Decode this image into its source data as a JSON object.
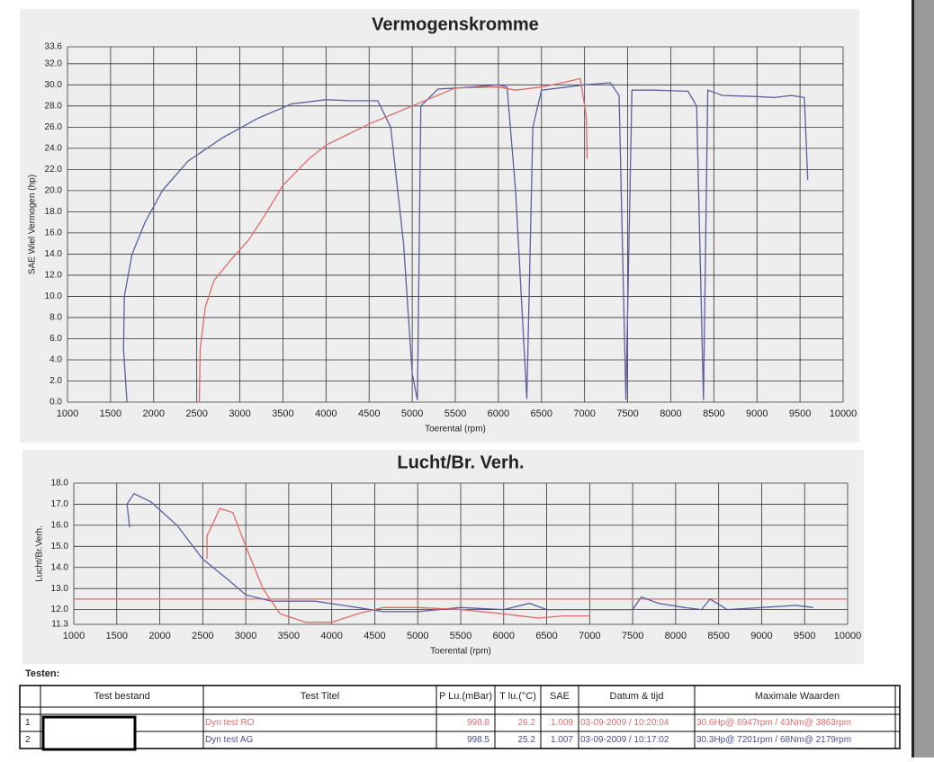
{
  "chart_data": [
    {
      "type": "line",
      "title": "Vermogenskromme",
      "x_label": "Toerental (rpm)",
      "y_label": "SAE Wiel Vermogen (hp)",
      "xlim": [
        1000,
        10000
      ],
      "xticks": [
        1000,
        1500,
        2000,
        2500,
        3000,
        3500,
        4000,
        4500,
        5000,
        5500,
        6000,
        6500,
        7000,
        7500,
        8000,
        8500,
        9000,
        9500,
        10000
      ],
      "ylim": [
        0,
        33.6
      ],
      "yticks": [
        {
          "value": 0,
          "label": "0.0"
        },
        {
          "value": 2,
          "label": "2.0"
        },
        {
          "value": 4,
          "label": "4.0"
        },
        {
          "value": 6,
          "label": "6.0"
        },
        {
          "value": 8,
          "label": "8.0"
        },
        {
          "value": 10,
          "label": "10.0"
        },
        {
          "value": 12,
          "label": "12.0"
        },
        {
          "value": 14,
          "label": "14.0"
        },
        {
          "value": 16,
          "label": "16.0"
        },
        {
          "value": 18,
          "label": "18.0"
        },
        {
          "value": 20,
          "label": "20.0"
        },
        {
          "value": 22,
          "label": "22.0"
        },
        {
          "value": 24,
          "label": "24.0"
        },
        {
          "value": 26,
          "label": "26.0"
        },
        {
          "value": 28,
          "label": "28.0"
        },
        {
          "value": 30,
          "label": "30.0"
        },
        {
          "value": 32,
          "label": "32.0"
        },
        33.6
      ],
      "grid": true,
      "series": [
        {
          "color": "#5a5fa0",
          "x": [
            1690,
            1650,
            1660,
            1750,
            1900,
            2100,
            2400,
            2800,
            3200,
            3600,
            4000,
            4300,
            4600,
            4750,
            4900,
            5000,
            5060,
            5100,
            5300,
            5700,
            6000,
            6100,
            6200,
            6330,
            6400,
            6500,
            6800,
            7000,
            7300,
            7400,
            7480,
            7550,
            7800,
            8200,
            8300,
            8380,
            8430,
            8600,
            9000,
            9200,
            9400,
            9550,
            9590
          ],
          "values": [
            0,
            5,
            10,
            14,
            17,
            20,
            22.8,
            25,
            26.8,
            28.2,
            28.6,
            28.5,
            28.5,
            26,
            15,
            2.7,
            0.2,
            28,
            29.6,
            29.8,
            30,
            29.8,
            20,
            0.3,
            26,
            29.5,
            29.8,
            30,
            30.2,
            29,
            0.2,
            29.5,
            29.5,
            29.4,
            28,
            0.2,
            29.5,
            29,
            28.9,
            28.8,
            29,
            28.8,
            21
          ]
        },
        {
          "color": "#e06a6a",
          "x": [
            2530,
            2540,
            2600,
            2700,
            2900,
            3100,
            3300,
            3500,
            3800,
            4000,
            4500,
            5000,
            5500,
            6000,
            6200,
            6500,
            6800,
            6950,
            7020,
            7030
          ],
          "values": [
            0,
            5,
            9,
            11.5,
            13.5,
            15.3,
            17.8,
            20.5,
            23,
            24.3,
            26.3,
            28,
            29.7,
            29.8,
            29.5,
            29.8,
            30.3,
            30.6,
            27,
            23
          ]
        }
      ]
    },
    {
      "type": "line",
      "title": "Lucht/Br. Verh.",
      "x_label": "Toerental (rpm)",
      "y_label": "Lucht/Br.Verh.",
      "xlim": [
        1000,
        10000
      ],
      "xticks": [
        1000,
        1500,
        2000,
        2500,
        3000,
        3500,
        4000,
        4500,
        5000,
        5500,
        6000,
        6500,
        7000,
        7500,
        8000,
        8500,
        9000,
        9500,
        10000
      ],
      "ylim": [
        11.3,
        18.0
      ],
      "yticks": [
        11.3,
        {
          "value": 12,
          "label": "12.0"
        },
        {
          "value": 13,
          "label": "13.0"
        },
        {
          "value": 14,
          "label": "14.0"
        },
        {
          "value": 15,
          "label": "15.0"
        },
        {
          "value": 16,
          "label": "16.0"
        },
        {
          "value": 17,
          "label": "17.0"
        },
        {
          "value": 18,
          "label": "18.0"
        }
      ],
      "grid": true,
      "reference_line": {
        "value": 12.5,
        "color": "#e06a6a"
      },
      "series": [
        {
          "color": "#5a5fa0",
          "x": [
            1650,
            1620,
            1700,
            1900,
            2200,
            2500,
            2800,
            3000,
            3300,
            3800,
            4300,
            4600,
            5000,
            5500,
            6000,
            6300,
            6500,
            7000,
            7500,
            7600,
            7800,
            8100,
            8300,
            8400,
            8600,
            9000,
            9400,
            9600
          ],
          "values": [
            15.9,
            17,
            17.5,
            17.1,
            16,
            14.4,
            13.4,
            12.7,
            12.4,
            12.4,
            12.1,
            11.9,
            11.9,
            12.1,
            12,
            12.3,
            12,
            12,
            12,
            12.6,
            12.3,
            12.1,
            12,
            12.5,
            12,
            12.1,
            12.2,
            12.1
          ]
        },
        {
          "color": "#e06a6a",
          "x": [
            2550,
            2550,
            2700,
            2850,
            3000,
            3200,
            3400,
            3700,
            4000,
            4300,
            4600,
            5000,
            5500,
            6000,
            6400,
            6700,
            7000
          ],
          "values": [
            14.4,
            15.5,
            16.8,
            16.6,
            15,
            13,
            11.8,
            11.4,
            11.4,
            11.8,
            12.1,
            12.1,
            12,
            11.8,
            11.6,
            11.7,
            11.7
          ]
        }
      ]
    }
  ],
  "table": {
    "heading": "Testen:",
    "columns": [
      "Test bestand",
      "Test Titel",
      "P Lu.(mBar)",
      "T lu.(°C)",
      "SAE",
      "Datum & tijd",
      "Maximale Waarden"
    ],
    "rows": [
      {
        "color": "#e06a6a",
        "index": "1",
        "cells": [
          "Dyn test RO",
          "998.8",
          "26.2",
          "1.009",
          "03-09-2009 / 10:20:04",
          "30.6Hp@ 6947rpm / 43Nm@ 3863rpm"
        ]
      },
      {
        "color": "#4a4f90",
        "index": "2",
        "cells": [
          "Dyn test AG",
          "998.5",
          "25.2",
          "1.007",
          "03-09-2009 / 10:17:02",
          "30.3Hp@ 7201rpm / 68Nm@ 2179rpm"
        ]
      }
    ]
  }
}
